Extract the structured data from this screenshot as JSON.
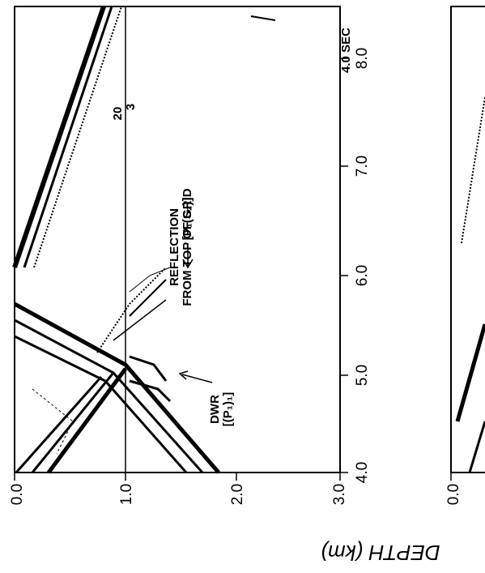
{
  "panel_left": {
    "depth_ticks": [
      "0.0",
      "1.0",
      "2.0",
      "3.0"
    ],
    "time_ticks": [
      "4.0",
      "5.0",
      "6.0",
      "7.0",
      "8.0"
    ],
    "time_label": "4.0 SEC",
    "grid_marks": [
      "20",
      "3"
    ],
    "annotations": {
      "reflection": [
        "REFLECTION",
        "FROM TOP OF GRID"
      ],
      "p1s2": "[P₁(S₂)]",
      "dwr": [
        "DWR",
        "[(P₁)₁]"
      ]
    }
  },
  "panel_right": {
    "depth_ticks": [
      "0.0"
    ]
  },
  "axis_title": "DEPTH (km)"
}
